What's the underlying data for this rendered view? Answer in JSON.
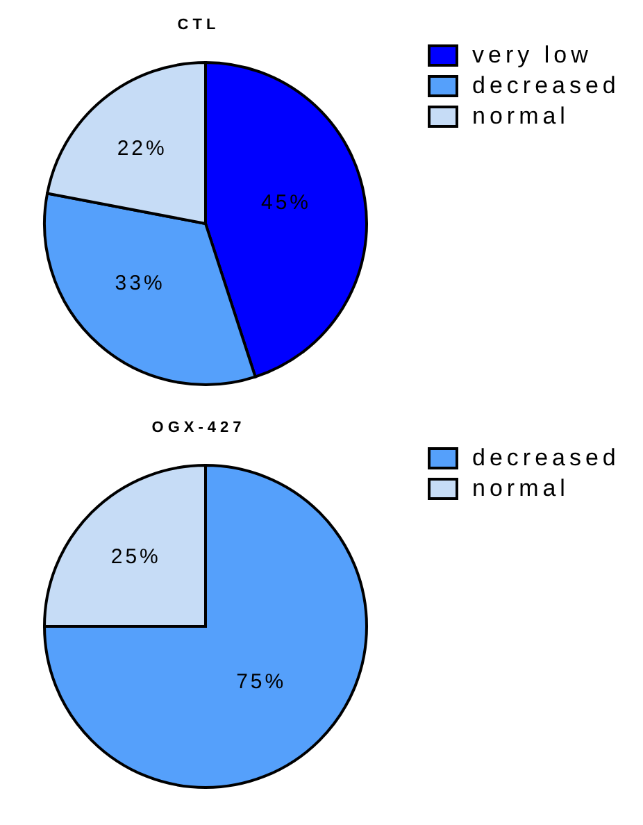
{
  "chart_data": [
    {
      "type": "pie",
      "title": "CTL",
      "categories": [
        "very low",
        "decreased",
        "normal"
      ],
      "values": [
        45,
        33,
        22
      ],
      "colors": [
        "#0000ff",
        "#55a0fb",
        "#c6dcf6"
      ],
      "value_labels": [
        "45%",
        "33%",
        "22%"
      ],
      "legend": "right"
    },
    {
      "type": "pie",
      "title": "OGX-427",
      "categories": [
        "decreased",
        "normal"
      ],
      "values": [
        75,
        25
      ],
      "colors": [
        "#55a0fb",
        "#c6dcf6"
      ],
      "value_labels": [
        "75%",
        "25%"
      ],
      "legend": "right"
    }
  ]
}
